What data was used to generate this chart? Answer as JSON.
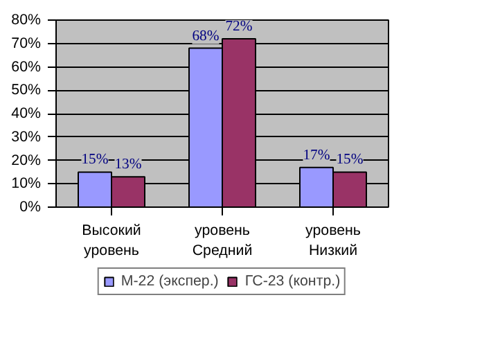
{
  "chart_data": {
    "type": "bar",
    "categories": [
      "Высокий уровень",
      "уровень Средний",
      "уровень Низкий"
    ],
    "series": [
      {
        "name": "М-22 (экспер.)",
        "color": "#9999ff",
        "values": [
          15,
          68,
          17
        ],
        "value_labels": [
          "15%",
          "68%",
          "17%"
        ]
      },
      {
        "name": "ГС-23 (контр.)",
        "color": "#993366",
        "values": [
          13,
          72,
          15
        ],
        "value_labels": [
          "13%",
          "72%",
          "15%"
        ]
      }
    ],
    "ylim": [
      0,
      80
    ],
    "yticks": [
      {
        "value": 0,
        "label": "0%"
      },
      {
        "value": 10,
        "label": "10%"
      },
      {
        "value": 20,
        "label": "20%"
      },
      {
        "value": 30,
        "label": "30%"
      },
      {
        "value": 40,
        "label": "40%"
      },
      {
        "value": 50,
        "label": "50%"
      },
      {
        "value": 60,
        "label": "60%"
      },
      {
        "value": 70,
        "label": "70%"
      },
      {
        "value": 80,
        "label": "80%"
      }
    ],
    "grid": "y",
    "legend": "bottom"
  }
}
